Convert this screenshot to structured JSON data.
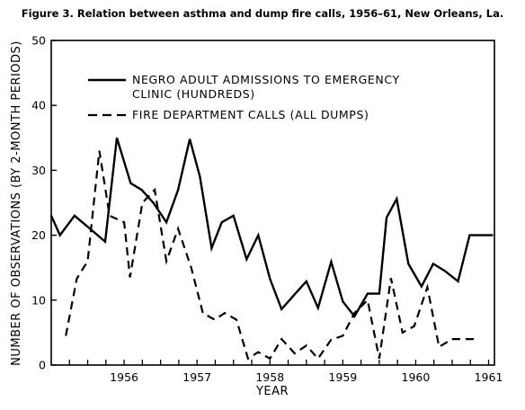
{
  "chart_data": {
    "type": "line",
    "title": "Figure 3.   Relation between asthma and dump fire calls, 1956–61, New Orleans, La.",
    "xlabel": "YEAR",
    "ylabel": "NUMBER OF OBSERVATIONS (BY 2-MONTH PERIODS)",
    "ylim": [
      0,
      50
    ],
    "xlim": [
      1955.5,
      1961.58
    ],
    "y_ticks": [
      "0",
      "10",
      "20",
      "30",
      "40",
      "50"
    ],
    "x_ticks": [
      "1956",
      "1957",
      "1958",
      "1959",
      "1960",
      "1961"
    ],
    "grid": false,
    "legend_position": "top-center",
    "series": [
      {
        "name": "NEGRO ADULT ADMISSIONS TO EMERGENCY",
        "name_line2": "CLINIC (HUNDREDS)",
        "style": "solid",
        "color": "#000000",
        "x": [
          1955.5,
          1955.62,
          1955.82,
          1956.0,
          1956.24,
          1956.4,
          1956.59,
          1956.74,
          1956.9,
          1957.08,
          1957.24,
          1957.4,
          1957.54,
          1957.7,
          1957.84,
          1958.0,
          1958.18,
          1958.34,
          1958.5,
          1958.66,
          1958.84,
          1959.0,
          1959.16,
          1959.34,
          1959.5,
          1959.66,
          1959.84,
          1960.0,
          1960.1,
          1960.24,
          1960.4,
          1960.58,
          1960.74,
          1960.9,
          1961.08,
          1961.24,
          1961.4,
          1961.56
        ],
        "values": [
          23.0,
          20.0,
          23.0,
          21.3,
          19.0,
          35.0,
          28.0,
          27.0,
          25.0,
          22.0,
          27.0,
          34.8,
          29.0,
          18.0,
          22.0,
          23.0,
          16.3,
          20.0,
          13.3,
          8.6,
          10.9,
          12.9,
          8.8,
          15.9,
          9.8,
          7.5,
          11.0,
          11.0,
          22.7,
          25.6,
          15.6,
          12.1,
          15.6,
          14.5,
          12.9,
          20.0,
          20.0,
          20.0
        ]
      },
      {
        "name": "FIRE DEPARTMENT CALLS (ALL DUMPS)",
        "style": "dashed",
        "color": "#000000",
        "x": [
          1955.7,
          1955.85,
          1956.0,
          1956.16,
          1956.3,
          1956.5,
          1956.58,
          1956.75,
          1956.92,
          1957.08,
          1957.24,
          1957.42,
          1957.58,
          1957.74,
          1957.88,
          1958.04,
          1958.2,
          1958.34,
          1958.5,
          1958.66,
          1958.84,
          1959.0,
          1959.16,
          1959.34,
          1959.5,
          1959.66,
          1959.84,
          1960.0,
          1960.16,
          1960.32,
          1960.48,
          1960.66,
          1960.82,
          1961.0,
          1961.16,
          1961.32
        ],
        "values": [
          4.5,
          13.3,
          16.0,
          33.0,
          23.0,
          22.0,
          13.5,
          25.0,
          27.0,
          16.0,
          21.0,
          15.0,
          8.0,
          7.0,
          8.0,
          7.0,
          1.0,
          2.0,
          1.0,
          4.0,
          1.8,
          3.0,
          1.0,
          3.9,
          4.5,
          8.0,
          10.0,
          1.0,
          13.4,
          5.0,
          6.0,
          12.0,
          2.8,
          4.0,
          4.0,
          4.0
        ]
      }
    ]
  }
}
